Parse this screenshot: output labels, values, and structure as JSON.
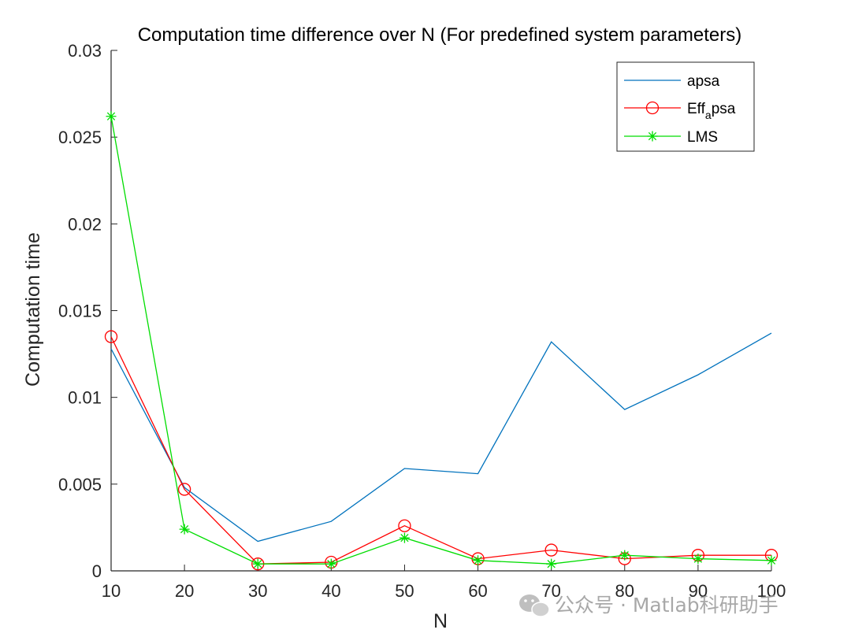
{
  "chart_data": {
    "type": "line",
    "title": "Computation time difference over N (For predefined system parameters)",
    "xlabel": "N",
    "ylabel": "Computation time",
    "xlim": [
      10,
      100
    ],
    "ylim": [
      0,
      0.03
    ],
    "xticks": [
      10,
      20,
      30,
      40,
      50,
      60,
      70,
      80,
      90,
      100
    ],
    "yticks": [
      0,
      0.005,
      0.01,
      0.015,
      0.02,
      0.025,
      0.03
    ],
    "ytick_labels": [
      "0",
      "0.005",
      "0.01",
      "0.015",
      "0.02",
      "0.025",
      "0.03"
    ],
    "grid": false,
    "legend_position": "top-right",
    "x": [
      10,
      20,
      30,
      40,
      50,
      60,
      70,
      80,
      90,
      100
    ],
    "series": [
      {
        "name": "apsa",
        "color": "#0072BD",
        "marker": "none",
        "values": [
          0.0128,
          0.0048,
          0.0017,
          0.00285,
          0.0059,
          0.0056,
          0.0132,
          0.0093,
          0.0113,
          0.0137
        ]
      },
      {
        "name": "Eff",
        "name_sub": "a",
        "name_suffix": "psa",
        "color": "#FF0000",
        "marker": "circle",
        "values": [
          0.0135,
          0.0047,
          0.0004,
          0.0005,
          0.0026,
          0.0007,
          0.0012,
          0.0007,
          0.0009,
          0.0009
        ]
      },
      {
        "name": "LMS",
        "color": "#00DD00",
        "marker": "star",
        "values": [
          0.0262,
          0.0024,
          0.0004,
          0.0004,
          0.0019,
          0.0006,
          0.0004,
          0.0009,
          0.0007,
          0.0006
        ]
      }
    ]
  },
  "watermark": {
    "text": "公众号 · Matlab科研助手",
    "icon": "wechat-icon"
  }
}
